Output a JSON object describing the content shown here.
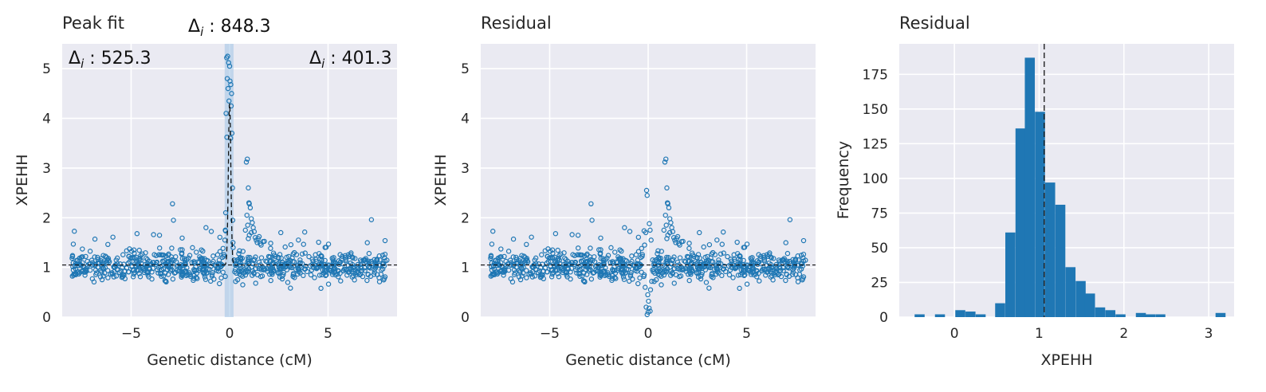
{
  "chart_data": [
    {
      "type": "scatter",
      "title": "Peak fit",
      "xlabel": "Genetic distance (cM)",
      "ylabel": "XPEHH",
      "xlim": [
        -8.5,
        8.5
      ],
      "ylim": [
        0,
        5.5
      ],
      "xticks": [
        -5,
        0,
        5
      ],
      "xtick_labels": [
        "−5",
        "0",
        "5"
      ],
      "yticks": [
        0,
        1,
        2,
        3,
        4,
        5
      ],
      "ytick_labels": [
        "0",
        "1",
        "2",
        "3",
        "4",
        "5"
      ],
      "grid": true,
      "baseline": 1.05,
      "peak_band": [
        -0.25,
        0.2
      ],
      "annotations": {
        "left": "525.3",
        "center": "848.3",
        "right": "401.3"
      },
      "point_color": "#1f77b4",
      "series": [
        {
          "values": "approx. 900 points between x = -8 and 8, most with y between 0.6 and 1.6; a sharp peak near x = 0 reaching about 5.2, a secondary cluster near x = 1 reaching about 3.2, isolated points near (-2.9, 2.3), (-2.8, 1.95), (7.2, 1.95); fitted curve (dashed) peaks at about 4.3 at x = 0"
        }
      ]
    },
    {
      "type": "scatter",
      "title": "Residual",
      "xlabel": "Genetic distance (cM)",
      "ylabel": "XPEHH",
      "xlim": [
        -8.5,
        8.5
      ],
      "ylim": [
        0,
        5.5
      ],
      "xticks": [
        -5,
        0,
        5
      ],
      "xtick_labels": [
        "−5",
        "0",
        "5"
      ],
      "yticks": [
        0,
        1,
        2,
        3,
        4,
        5
      ],
      "ytick_labels": [
        "0",
        "1",
        "2",
        "3",
        "4",
        "5"
      ],
      "grid": true,
      "baseline": 1.05,
      "point_color": "#1f77b4",
      "series": [
        {
          "values": "same points after subtracting the peak fit: mostly between 0.6 and 1.6; near x = 0 values drop to 0-0.4 with a few at 1.8-2.55; cluster near x = 1 reaching about 3.2; isolated points near (-2.9, 2.3), (7.2, 1.95)"
        }
      ]
    },
    {
      "type": "bar",
      "title": "Residual",
      "xlabel": "XPEHH",
      "ylabel": "Frequency",
      "xlim": [
        -0.65,
        3.3
      ],
      "ylim": [
        0,
        197
      ],
      "xticks": [
        0,
        1,
        2,
        3
      ],
      "xtick_labels": [
        "0",
        "1",
        "2",
        "3"
      ],
      "yticks": [
        0,
        25,
        50,
        75,
        100,
        125,
        150,
        175
      ],
      "ytick_labels": [
        "0",
        "25",
        "50",
        "75",
        "100",
        "125",
        "150",
        "175"
      ],
      "grid": true,
      "mean_line": 1.06,
      "bar_color": "#1f77b4",
      "bin_width": 0.118,
      "bins": [
        {
          "x": -0.41,
          "count": 2
        },
        {
          "x": -0.17,
          "count": 2
        },
        {
          "x": 0.07,
          "count": 5
        },
        {
          "x": 0.19,
          "count": 4
        },
        {
          "x": 0.31,
          "count": 2
        },
        {
          "x": 0.54,
          "count": 10
        },
        {
          "x": 0.66,
          "count": 61
        },
        {
          "x": 0.78,
          "count": 136
        },
        {
          "x": 0.89,
          "count": 187
        },
        {
          "x": 1.01,
          "count": 148
        },
        {
          "x": 1.13,
          "count": 97
        },
        {
          "x": 1.25,
          "count": 81
        },
        {
          "x": 1.37,
          "count": 36
        },
        {
          "x": 1.49,
          "count": 26
        },
        {
          "x": 1.6,
          "count": 17
        },
        {
          "x": 1.72,
          "count": 7
        },
        {
          "x": 1.84,
          "count": 5
        },
        {
          "x": 1.96,
          "count": 2
        },
        {
          "x": 2.2,
          "count": 3
        },
        {
          "x": 2.31,
          "count": 2
        },
        {
          "x": 2.43,
          "count": 2
        },
        {
          "x": 3.14,
          "count": 3
        }
      ]
    }
  ]
}
